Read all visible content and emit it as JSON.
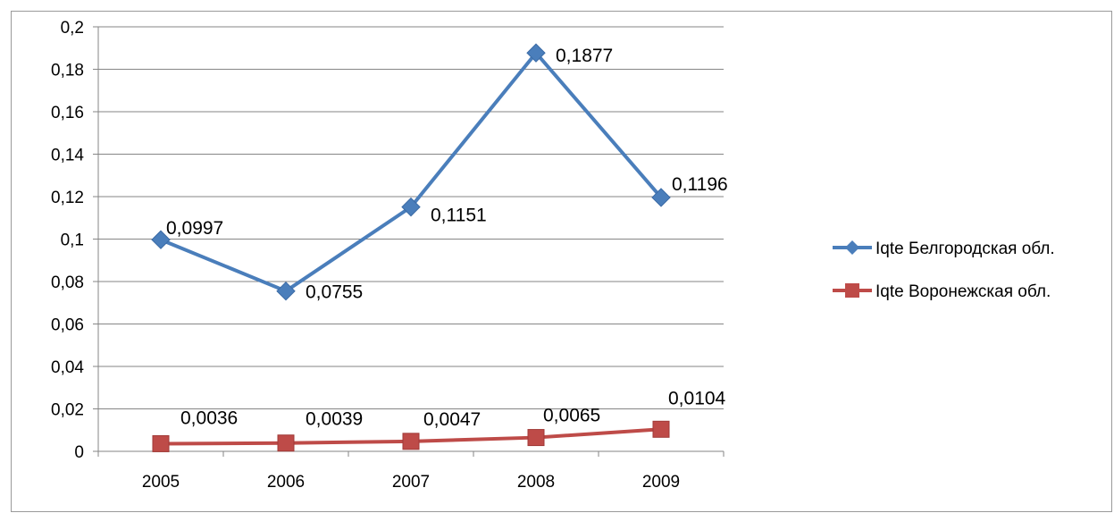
{
  "chart_data": {
    "type": "line",
    "categories": [
      "2005",
      "2006",
      "2007",
      "2008",
      "2009"
    ],
    "ylim": [
      0,
      0.2
    ],
    "yticks": [
      "0",
      "0,02",
      "0,04",
      "0,06",
      "0,08",
      "0,1",
      "0,12",
      "0,14",
      "0,16",
      "0,18",
      "0,2"
    ],
    "grid": true,
    "legend_position": "right",
    "series": [
      {
        "name": "Iqte Белгородская обл.",
        "values": [
          0.0997,
          0.0755,
          0.1151,
          0.1877,
          0.1196
        ],
        "labels": [
          "0,0997",
          "0,0755",
          "0,1151",
          "0,1877",
          "0,1196"
        ],
        "color": "#4a7ebb",
        "marker": "diamond"
      },
      {
        "name": "Iqte Воронежская обл.",
        "values": [
          0.0036,
          0.0039,
          0.0047,
          0.0065,
          0.0104
        ],
        "labels": [
          "0,0036",
          "0,0039",
          "0,0047",
          "0,0065",
          "0,0104"
        ],
        "color": "#be4b48",
        "marker": "square"
      }
    ]
  }
}
